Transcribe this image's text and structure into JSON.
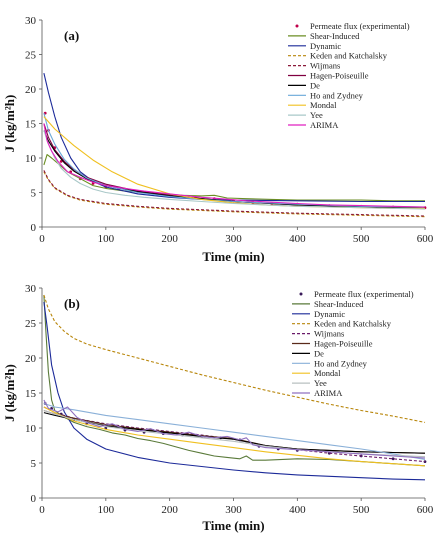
{
  "chart_data": [
    {
      "type": "line",
      "panel_label": "(a)",
      "xlabel": "Time (min)",
      "ylabel": "J (kg/m²h)",
      "xlim": [
        0,
        600
      ],
      "ylim": [
        0,
        30
      ],
      "xticks": [
        0,
        100,
        200,
        300,
        400,
        500,
        600
      ],
      "yticks": [
        0,
        5,
        10,
        15,
        20,
        25,
        30
      ],
      "legend_position": "top-right",
      "series": [
        {
          "name": "Permeate flux (experimental)",
          "color": "#c0004a",
          "style": "dots",
          "x": [
            5,
            10,
            20,
            30,
            45,
            60,
            80,
            100,
            120,
            150,
            180,
            210,
            240,
            270,
            300,
            330,
            360,
            400,
            450,
            500,
            550,
            600
          ],
          "y": [
            16.5,
            14,
            11.5,
            9.5,
            8,
            7,
            6.3,
            5.8,
            5.5,
            5.1,
            4.8,
            4.5,
            4.3,
            4.1,
            3.8,
            3.6,
            3.4,
            3.3,
            3.1,
            3,
            2.9,
            2.8
          ]
        },
        {
          "name": "Shear-Induced",
          "color": "#6b8e23",
          "style": "solid",
          "x": [
            3,
            8,
            15,
            25,
            40,
            60,
            80,
            100,
            130,
            160,
            190,
            220,
            250,
            270,
            290,
            320,
            360,
            400,
            450,
            500,
            550,
            600
          ],
          "y": [
            9,
            10.5,
            10,
            9.2,
            8,
            7,
            6,
            5.6,
            5.2,
            5,
            4.8,
            4.6,
            4.5,
            4.6,
            4.2,
            4.1,
            4,
            3.9,
            3.9,
            3.9,
            3.8,
            3.8
          ]
        },
        {
          "name": "Dynamic",
          "color": "#1c2a99",
          "style": "solid",
          "x": [
            3,
            10,
            20,
            30,
            45,
            60,
            80,
            100,
            150,
            200,
            250,
            300,
            400,
            500,
            600
          ],
          "y": [
            22.3,
            19.5,
            16,
            13,
            10,
            8,
            6.6,
            5.8,
            4.8,
            4.3,
            4,
            3.9,
            3.8,
            3.7,
            3.7
          ]
        },
        {
          "name": "Keden and Katchalsky",
          "color": "#b8860b",
          "style": "dashed",
          "x": [
            3,
            10,
            20,
            40,
            60,
            100,
            150,
            200,
            300,
            400,
            500,
            600
          ],
          "y": [
            8,
            6.8,
            5.6,
            4.5,
            3.9,
            3.3,
            2.9,
            2.6,
            2.2,
            1.9,
            1.7,
            1.5
          ]
        },
        {
          "name": "Wijmans",
          "color": "#8b1a3a",
          "style": "dashed",
          "x": [
            3,
            10,
            20,
            40,
            60,
            100,
            150,
            200,
            300,
            400,
            500,
            600
          ],
          "y": [
            8.2,
            6.9,
            5.7,
            4.6,
            4,
            3.4,
            3,
            2.7,
            2.3,
            2,
            1.8,
            1.6
          ]
        },
        {
          "name": "Hagen-Poiseuille",
          "color": "#800040",
          "style": "solid",
          "x": [
            3,
            10,
            20,
            35,
            50,
            70,
            100,
            150,
            200,
            250,
            300,
            400,
            500,
            600
          ],
          "y": [
            15,
            13,
            11.2,
            9.5,
            8.3,
            7.2,
            6.2,
            5.2,
            4.6,
            4.1,
            3.7,
            3.2,
            2.9,
            2.7
          ]
        },
        {
          "name": "De",
          "color": "#000000",
          "style": "solid",
          "x": [
            3,
            10,
            20,
            35,
            50,
            70,
            100,
            150,
            200,
            250,
            300,
            400,
            500,
            600
          ],
          "y": [
            14,
            12.5,
            11,
            9.3,
            8.1,
            7,
            6,
            5.1,
            4.5,
            4.1,
            3.7,
            3.2,
            2.9,
            2.7
          ]
        },
        {
          "name": "Ho and Zydney",
          "color": "#6aa8d8",
          "style": "solid",
          "x": [
            3,
            10,
            20,
            35,
            50,
            70,
            100,
            150,
            200,
            250,
            300,
            400,
            500,
            600
          ],
          "y": [
            16.5,
            14,
            12,
            9.8,
            8.4,
            7.1,
            6,
            5,
            4.4,
            4,
            3.7,
            3.3,
            3,
            2.9
          ]
        },
        {
          "name": "Mondal",
          "color": "#f0c020",
          "style": "solid",
          "x": [
            3,
            20,
            50,
            80,
            110,
            150,
            200,
            250,
            300,
            350,
            400,
            450,
            500,
            550,
            600
          ],
          "y": [
            16,
            14.2,
            11.8,
            9.7,
            8,
            6.2,
            4.8,
            4,
            3.5,
            3.2,
            3,
            2.9,
            2.8,
            2.7,
            2.7
          ]
        },
        {
          "name": "Yee",
          "color": "#a9c8c8",
          "style": "solid",
          "x": [
            3,
            10,
            20,
            30,
            45,
            60,
            80,
            100,
            130,
            160,
            200,
            250,
            300,
            400,
            500,
            600
          ],
          "y": [
            14,
            12,
            10,
            8.5,
            7.2,
            6.3,
            5.5,
            5,
            4.6,
            4.3,
            4,
            3.7,
            3.4,
            3,
            2.8,
            2.6
          ]
        },
        {
          "name": "ARIMA",
          "color": "#e020c0",
          "style": "solid",
          "x": [
            3,
            8,
            15,
            25,
            40,
            60,
            80,
            100,
            130,
            160,
            190,
            220,
            250,
            280,
            320,
            360,
            400,
            450,
            500,
            550,
            600
          ],
          "y": [
            15,
            12.5,
            11,
            9.5,
            8,
            7.2,
            6.5,
            6,
            5.6,
            5.2,
            4.9,
            4.6,
            4.3,
            4.1,
            3.8,
            3.6,
            3.4,
            3.2,
            3.1,
            3,
            2.9
          ]
        }
      ]
    },
    {
      "type": "line",
      "panel_label": "(b)",
      "xlabel": "Time (min)",
      "ylabel": "J (kg/m²h)",
      "xlim": [
        0,
        600
      ],
      "ylim": [
        0,
        30
      ],
      "xticks": [
        0,
        100,
        200,
        300,
        400,
        500,
        600
      ],
      "yticks": [
        0,
        5,
        10,
        15,
        20,
        25,
        30
      ],
      "legend_position": "top-right",
      "series": [
        {
          "name": "Permeate flux (experimental)",
          "color": "#3a1a5a",
          "style": "dots",
          "x": [
            5,
            15,
            30,
            50,
            70,
            100,
            130,
            160,
            190,
            220,
            250,
            280,
            310,
            340,
            370,
            400,
            450,
            500,
            550,
            600
          ],
          "y": [
            13.5,
            12.8,
            12,
            11.2,
            10.6,
            10,
            9.7,
            9.4,
            9.2,
            9,
            8.8,
            8.6,
            8.3,
            7.4,
            7,
            6.8,
            6.4,
            6,
            5.6,
            5.2
          ]
        },
        {
          "name": "Shear-Induced",
          "color": "#5a7a3a",
          "style": "solid",
          "x": [
            3,
            6,
            10,
            15,
            20,
            30,
            40,
            50,
            70,
            90,
            110,
            130,
            150,
            170,
            190,
            210,
            230,
            250,
            270,
            290,
            310,
            320,
            330,
            350,
            400,
            450,
            500,
            550,
            600
          ],
          "y": [
            29,
            24,
            18,
            14,
            12.5,
            11.8,
            11.3,
            10.8,
            10.2,
            9.8,
            9.3,
            9,
            8.5,
            8.2,
            7.8,
            7.3,
            6.8,
            6.4,
            6,
            5.8,
            5.6,
            6,
            5.4,
            5.4,
            5.6,
            5.5,
            5.2,
            4.9,
            4.6
          ]
        },
        {
          "name": "Dynamic",
          "color": "#1c2a99",
          "style": "solid",
          "x": [
            3,
            8,
            15,
            25,
            35,
            50,
            70,
            100,
            150,
            200,
            250,
            300,
            350,
            400,
            450,
            500,
            550,
            600
          ],
          "y": [
            28,
            24.5,
            19,
            15,
            12.3,
            10,
            8.4,
            7,
            5.8,
            5,
            4.5,
            4,
            3.6,
            3.3,
            3.1,
            2.9,
            2.7,
            2.6
          ]
        },
        {
          "name": "Keden and Katchalsky",
          "color": "#b8860b",
          "style": "dashed",
          "x": [
            3,
            10,
            20,
            35,
            50,
            70,
            100,
            150,
            200,
            250,
            300,
            350,
            400,
            450,
            500,
            550,
            600
          ],
          "y": [
            29,
            27,
            25.2,
            23.8,
            22.8,
            22,
            21.2,
            20,
            18.8,
            17.6,
            16.5,
            15.4,
            14.4,
            13.4,
            12.5,
            11.7,
            10.8
          ]
        },
        {
          "name": "Wijmans",
          "color": "#6a1a6a",
          "style": "dashed",
          "x": [
            3,
            20,
            50,
            100,
            150,
            200,
            250,
            300,
            350,
            400,
            450,
            500,
            550,
            600
          ],
          "y": [
            13,
            12.2,
            11.4,
            10.6,
            10,
            9.5,
            9,
            8.4,
            7.5,
            6.9,
            6.4,
            6,
            5.6,
            5.2
          ]
        },
        {
          "name": "Hagen-Poiseuille",
          "color": "#5a2a1a",
          "style": "solid",
          "x": [
            3,
            20,
            50,
            100,
            150,
            200,
            250,
            300,
            350,
            400,
            450,
            500,
            550,
            600
          ],
          "y": [
            12.5,
            12,
            11.4,
            10.5,
            9.9,
            9.4,
            8.9,
            8.5,
            7.5,
            7,
            6.8,
            6.6,
            6.5,
            6.4
          ]
        },
        {
          "name": "De",
          "color": "#000000",
          "style": "solid",
          "x": [
            3,
            20,
            50,
            100,
            150,
            200,
            250,
            300,
            350,
            400,
            450,
            500,
            550,
            600
          ],
          "y": [
            12.2,
            11.8,
            11.2,
            10.3,
            9.8,
            9.3,
            8.8,
            8.4,
            7.5,
            7,
            6.8,
            6.6,
            6.5,
            6.4
          ]
        },
        {
          "name": "Ho and Zydney",
          "color": "#8ab0d8",
          "style": "solid",
          "x": [
            3,
            20,
            50,
            100,
            150,
            200,
            250,
            300,
            350,
            400,
            450,
            500,
            550,
            600
          ],
          "y": [
            13.5,
            13,
            12.6,
            11.8,
            11.2,
            10.6,
            10,
            9.4,
            8.8,
            8.2,
            7.6,
            7,
            6.3,
            5.5
          ]
        },
        {
          "name": "Mondal",
          "color": "#f0c020",
          "style": "solid",
          "x": [
            3,
            20,
            50,
            100,
            150,
            200,
            250,
            300,
            350,
            400,
            450,
            500,
            550,
            600
          ],
          "y": [
            13,
            12.2,
            11,
            9.8,
            9,
            8.4,
            7.8,
            7.2,
            6.6,
            6.1,
            5.6,
            5.2,
            4.9,
            4.6
          ]
        },
        {
          "name": "Yee",
          "color": "#b8c0c0",
          "style": "solid",
          "x": [
            3,
            20,
            50,
            100,
            150,
            200,
            250,
            300,
            350,
            400,
            450,
            500,
            550,
            600
          ],
          "y": [
            12.5,
            12,
            11.2,
            10.2,
            9.6,
            9.1,
            8.6,
            8.1,
            7.4,
            6.9,
            6.6,
            6.3,
            6.1,
            5.9
          ]
        },
        {
          "name": "ARIMA",
          "color": "#9070c0",
          "style": "solid",
          "x": [
            3,
            10,
            25,
            40,
            55,
            70,
            90,
            110,
            130,
            150,
            170,
            190,
            210,
            230,
            250,
            270,
            290,
            310,
            320,
            330,
            350,
            400,
            450,
            500,
            550,
            600
          ],
          "y": [
            14,
            12.8,
            12.3,
            13,
            11.5,
            10.8,
            10.2,
            10.6,
            9.8,
            9.5,
            9.9,
            9.2,
            9,
            9.4,
            8.8,
            8.6,
            8.8,
            8.3,
            8.6,
            7.6,
            7.2,
            6.9,
            6.6,
            6.3,
            6,
            5.7
          ]
        }
      ]
    }
  ]
}
